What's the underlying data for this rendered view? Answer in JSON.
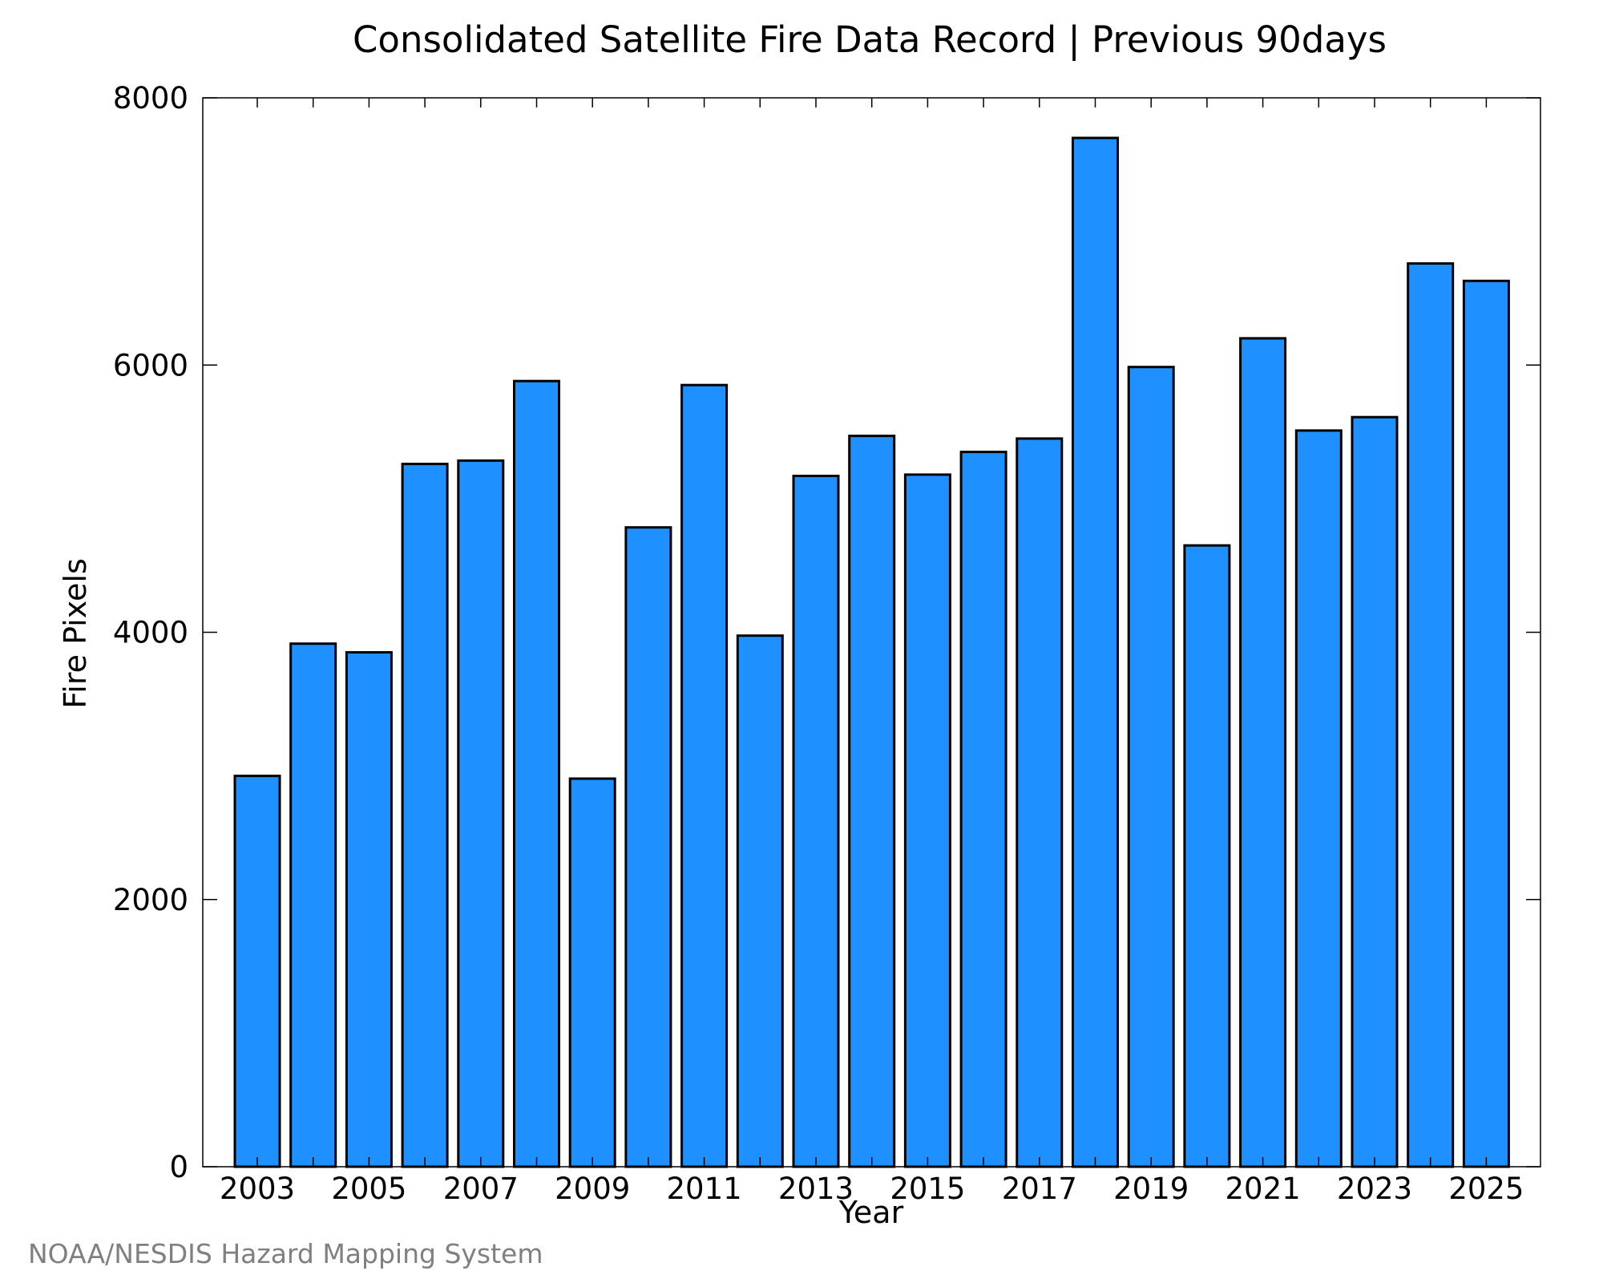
{
  "chart_data": {
    "type": "bar",
    "title": "Consolidated Satellite Fire Data Record | Previous 90days",
    "xlabel": "Year",
    "ylabel": "Fire Pixels",
    "ylim": [
      0,
      8000
    ],
    "yticks": [
      0,
      2000,
      4000,
      6000,
      8000
    ],
    "xtick_labels": [
      "2003",
      "2005",
      "2007",
      "2009",
      "2011",
      "2013",
      "2015",
      "2017",
      "2019",
      "2021",
      "2023",
      "2025"
    ],
    "categories": [
      "2003",
      "2004",
      "2005",
      "2006",
      "2007",
      "2008",
      "2009",
      "2010",
      "2011",
      "2012",
      "2013",
      "2014",
      "2015",
      "2016",
      "2017",
      "2018",
      "2019",
      "2020",
      "2021",
      "2022",
      "2023",
      "2024",
      "2025"
    ],
    "values": [
      2925,
      3915,
      3850,
      5260,
      5285,
      5880,
      2905,
      4785,
      5850,
      3975,
      5170,
      5470,
      5180,
      5350,
      5450,
      7700,
      5985,
      4650,
      6200,
      5510,
      5610,
      6760,
      6630
    ],
    "bar_color": "#1e90ff",
    "grid": false,
    "legend": "none"
  },
  "credit": "NOAA/NESDIS Hazard Mapping System"
}
